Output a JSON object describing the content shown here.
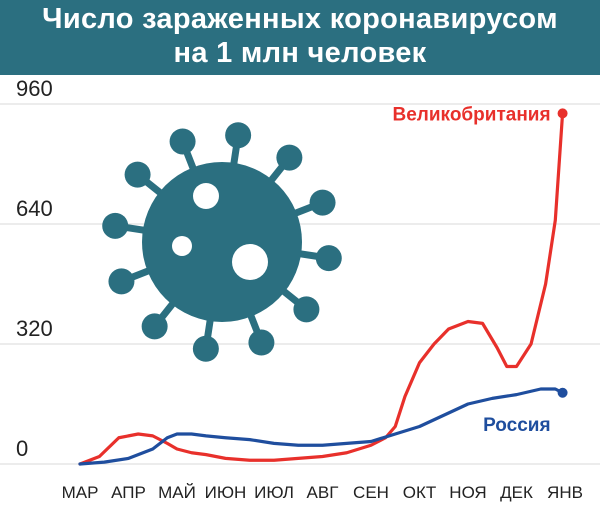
{
  "header": {
    "line1": "Число зараженных коронавирусом",
    "line2": "на 1 млн человек"
  },
  "colors": {
    "header_bg": "#2b6f80",
    "uk": "#e8302b",
    "russia": "#1f4e9e",
    "virus": "#2b6f80",
    "grid": "#d8d8d8"
  },
  "icons": {
    "virus": "coronavirus-icon"
  },
  "chart_data": {
    "type": "line",
    "title": "Число зараженных коронавирусом на 1 млн человек",
    "xlabel": "",
    "ylabel": "",
    "categories": [
      "МАР",
      "АПР",
      "МАЙ",
      "ИЮН",
      "ИЮЛ",
      "АВГ",
      "СЕН",
      "ОКТ",
      "НОЯ",
      "ДЕК",
      "ЯНВ"
    ],
    "y_ticks": [
      "0",
      "320",
      "640",
      "960"
    ],
    "ylim": [
      0,
      960
    ],
    "grid": "horizontal",
    "series": [
      {
        "name": "Великобритания",
        "color": "#e8302b",
        "x": [
          0,
          0.4,
          0.8,
          1.0,
          1.2,
          1.5,
          1.8,
          2.0,
          2.3,
          2.6,
          3.0,
          3.5,
          4.0,
          4.5,
          5.0,
          5.5,
          6.0,
          6.3,
          6.5,
          6.7,
          7.0,
          7.3,
          7.6,
          8.0,
          8.3,
          8.6,
          8.8,
          9.0,
          9.3,
          9.6,
          9.8,
          9.95
        ],
        "values": [
          0,
          20,
          70,
          75,
          80,
          75,
          55,
          40,
          30,
          25,
          15,
          10,
          10,
          15,
          20,
          30,
          50,
          70,
          100,
          180,
          270,
          320,
          360,
          380,
          375,
          310,
          260,
          260,
          320,
          480,
          650,
          935
        ]
      },
      {
        "name": "Россия",
        "color": "#1f4e9e",
        "x": [
          0,
          0.5,
          1.0,
          1.5,
          1.8,
          2.0,
          2.3,
          2.6,
          3.0,
          3.5,
          4.0,
          4.5,
          5.0,
          5.5,
          6.0,
          6.5,
          7.0,
          7.5,
          8.0,
          8.5,
          9.0,
          9.5,
          9.8,
          9.95
        ],
        "values": [
          0,
          5,
          15,
          40,
          70,
          80,
          80,
          75,
          70,
          65,
          55,
          50,
          50,
          55,
          60,
          80,
          100,
          130,
          160,
          175,
          185,
          200,
          200,
          190
        ]
      }
    ]
  }
}
